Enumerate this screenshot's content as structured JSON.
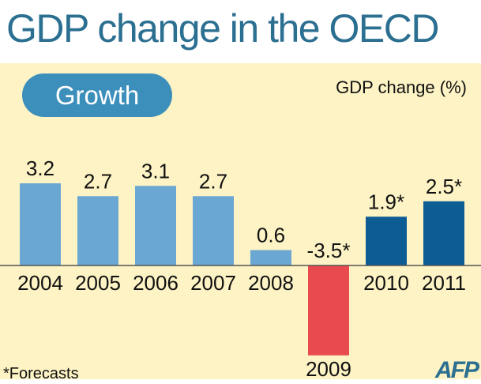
{
  "title": "GDP change in the OECD",
  "section_label": "Growth",
  "unit_label": "GDP change (%)",
  "footnote": "*Forecasts",
  "credit": "AFP",
  "colors": {
    "title": "#2b6f91",
    "background": "#fdf3c4",
    "pill": "#3d8fbb",
    "actual": "#6aa7d3",
    "forecast": "#0d5c93",
    "negative": "#e94a4f"
  },
  "chart_data": {
    "type": "bar",
    "categories": [
      "2004",
      "2005",
      "2006",
      "2007",
      "2008",
      "2009",
      "2010",
      "2011"
    ],
    "values": [
      3.2,
      2.7,
      3.1,
      2.7,
      0.6,
      -3.5,
      1.9,
      2.5
    ],
    "value_labels": [
      "3.2",
      "2.7",
      "3.1",
      "2.7",
      "0.6",
      "-3.5*",
      "1.9*",
      "2.5*"
    ],
    "forecast": [
      false,
      false,
      false,
      false,
      false,
      true,
      true,
      true
    ],
    "ylabel": "GDP change (%)",
    "grid": false,
    "legend": "none"
  }
}
